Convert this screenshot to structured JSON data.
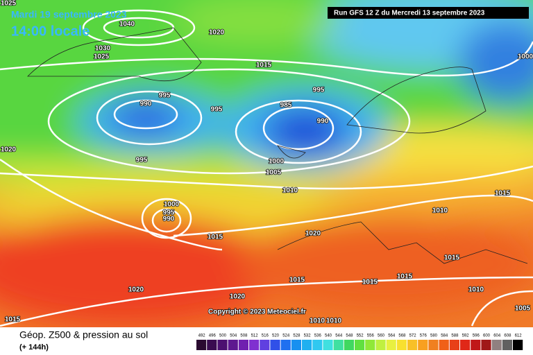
{
  "header": {
    "date": "Mardi 19 septembre 2023",
    "time": "14:00 locale",
    "run": "Run GFS 12 Z du Mercredi 13 septembre 2023"
  },
  "copyright": "Copyright © 2023 Meteociel.fr",
  "footer": {
    "title": "Géop. Z500 & pression au sol",
    "lead": "(+ 144h)"
  },
  "isobar_labels": [
    "1025",
    "1040",
    "1020",
    "1030",
    "1025",
    "1015",
    "995",
    "990",
    "995",
    "995",
    "985",
    "990",
    "1020",
    "995",
    "1000",
    "1005",
    "1010",
    "1000",
    "995",
    "990",
    "1015",
    "1020",
    "1010",
    "1015",
    "1015",
    "1015",
    "1015",
    "1015",
    "1020",
    "1020",
    "1010",
    "1005",
    "1015",
    "1010",
    "1010",
    "1000"
  ],
  "scale": [
    492,
    496,
    500,
    504,
    508,
    512,
    516,
    520,
    524,
    528,
    532,
    536,
    540,
    544,
    548,
    552,
    556,
    560,
    564,
    568,
    572,
    576,
    580,
    584,
    588,
    592,
    596,
    600,
    604,
    608,
    612
  ]
}
